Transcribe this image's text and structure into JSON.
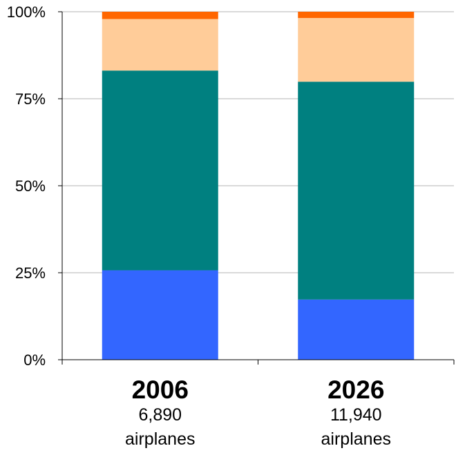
{
  "chart_data": {
    "type": "bar",
    "stacked": true,
    "normalized": true,
    "title": "",
    "xlabel": "",
    "ylabel": "",
    "ylim": [
      0,
      100
    ],
    "yticks": [
      "0%",
      "25%",
      "50%",
      "75%",
      "100%"
    ],
    "grid": true,
    "legend": "none",
    "categories": [
      {
        "year": "2006",
        "count": "6,890",
        "unit": "airplanes"
      },
      {
        "year": "2026",
        "count": "11,940",
        "unit": "airplanes"
      }
    ],
    "series": [
      {
        "color": "#3366ff",
        "values": [
          25.7,
          17.3
        ]
      },
      {
        "color": "#008080",
        "values": [
          57.4,
          62.6
        ]
      },
      {
        "color": "#ffcc99",
        "values": [
          14.8,
          18.3
        ]
      },
      {
        "color": "#ff6600",
        "values": [
          2.1,
          1.8
        ]
      }
    ]
  }
}
